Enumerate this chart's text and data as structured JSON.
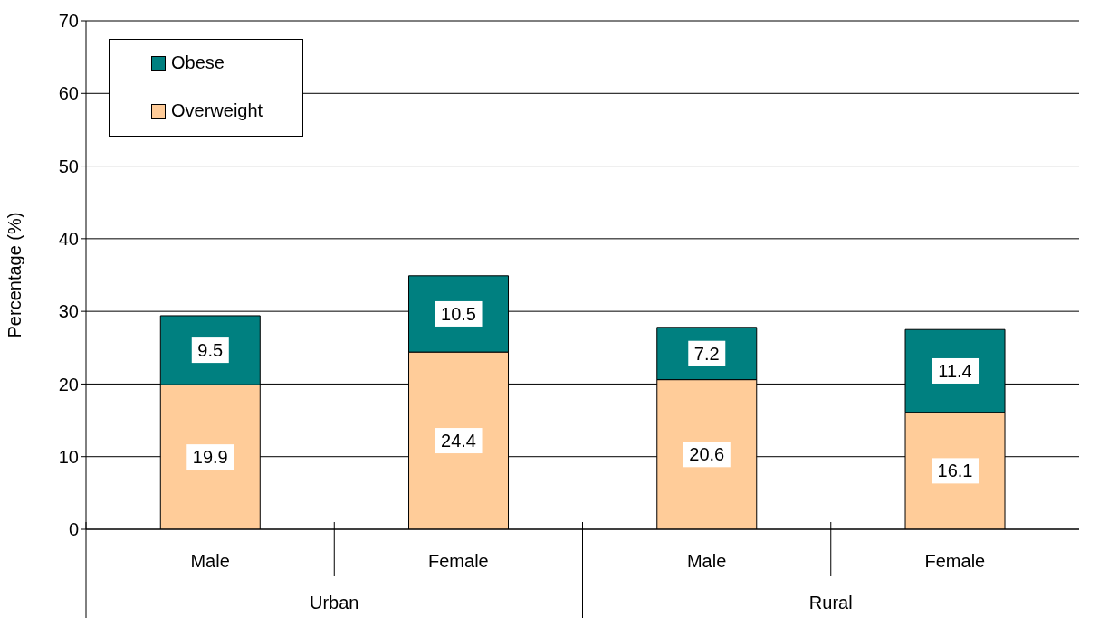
{
  "chart_data": {
    "type": "bar",
    "stacked": true,
    "ylabel": "Percentage (%)",
    "categories": [
      "Male",
      "Female",
      "Male",
      "Female"
    ],
    "annotations": [
      "Urban",
      "Rural"
    ],
    "series": [
      {
        "name": "Overweight",
        "color": "#ffcc99",
        "values": [
          19.9,
          24.4,
          20.6,
          16.1
        ]
      },
      {
        "name": "Obese",
        "color": "#008080",
        "values": [
          9.5,
          10.5,
          7.2,
          11.4
        ]
      }
    ],
    "ylim": [
      0,
      70
    ],
    "yticks": [
      0,
      10,
      20,
      30,
      40,
      50,
      60,
      70
    ],
    "grid": "y",
    "legend": "top left",
    "data_labels": true
  }
}
